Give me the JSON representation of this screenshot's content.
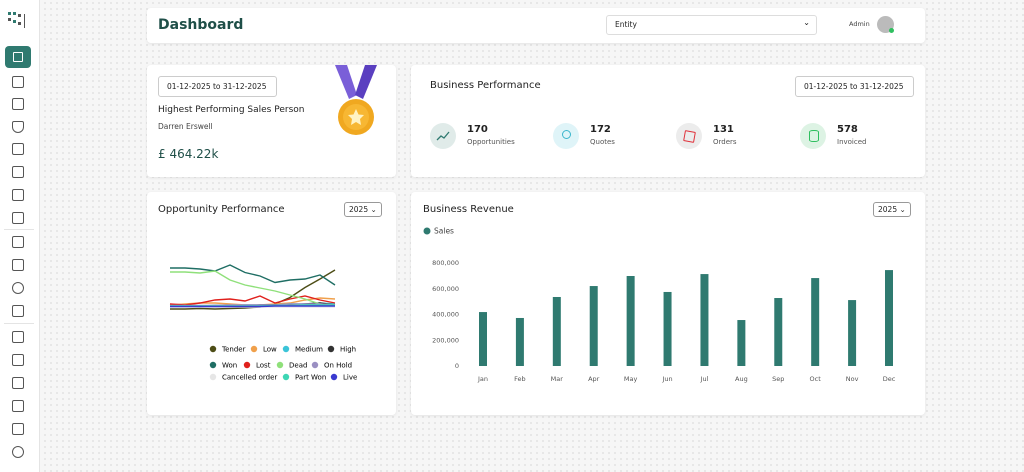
{
  "header": {
    "title": "Dashboard",
    "entity_select": "Entity",
    "user": "Admin"
  },
  "sales_person": {
    "date_range": "01-12-2025 to 31-12-2025",
    "title": "Highest Performing Sales Person",
    "name": "Darren Erswell",
    "amount": "£ 464.22k"
  },
  "business_performance": {
    "title": "Business Performance",
    "date_range": "01-12-2025 to 31-12-2025",
    "stats": [
      {
        "value": 170,
        "label": "Opportunities"
      },
      {
        "value": 172,
        "label": "Quotes"
      },
      {
        "value": 131,
        "label": "Orders"
      },
      {
        "value": 578,
        "label": "Invoiced"
      }
    ]
  },
  "chart_data": [
    {
      "type": "line",
      "title": "Opportunity Performance",
      "year_filter": "2025",
      "categories": [
        null,
        null,
        null,
        null,
        null,
        null,
        null,
        null,
        null,
        null,
        null,
        null
      ],
      "ylim": [
        0,
        100
      ],
      "series": [
        {
          "name": "Tender",
          "color": "#4d4d16",
          "values": [
            2,
            2,
            3,
            2,
            3,
            4,
            6,
            12,
            25,
            45,
            62,
            80
          ]
        },
        {
          "name": "Low",
          "color": "#f0a04b",
          "values": [
            10,
            12,
            14,
            14,
            12,
            10,
            10,
            12,
            14,
            20,
            24,
            22
          ]
        },
        {
          "name": "Medium",
          "color": "#3bc4d8",
          "values": [
            8,
            8,
            8,
            8,
            8,
            10,
            10,
            10,
            12,
            12,
            14,
            12
          ]
        },
        {
          "name": "High",
          "color": "#333333",
          "values": [
            8,
            8,
            8,
            9,
            9,
            8,
            10,
            10,
            10,
            12,
            14,
            10
          ]
        },
        {
          "name": "Won",
          "color": "#1f6e64",
          "values": [
            84,
            84,
            82,
            78,
            90,
            75,
            68,
            55,
            60,
            62,
            70,
            50
          ]
        },
        {
          "name": "Lost",
          "color": "#e0201c",
          "values": [
            12,
            10,
            14,
            20,
            22,
            18,
            28,
            14,
            22,
            28,
            20,
            14
          ]
        },
        {
          "name": "Dead",
          "color": "#8fe07a",
          "values": [
            76,
            76,
            74,
            78,
            60,
            50,
            44,
            38,
            30,
            22,
            12,
            10
          ]
        },
        {
          "name": "On Hold",
          "color": "#9a8fc2",
          "values": [
            9,
            9,
            9,
            9,
            10,
            10,
            10,
            10,
            12,
            12,
            12,
            10
          ]
        },
        {
          "name": "Cancelled order",
          "color": "#e6e6e6",
          "values": [
            6,
            6,
            6,
            6,
            6,
            6,
            6,
            6,
            6,
            6,
            6,
            6
          ]
        },
        {
          "name": "Part Won",
          "color": "#3ed6b4",
          "values": [
            8,
            8,
            8,
            8,
            8,
            8,
            8,
            9,
            9,
            10,
            10,
            10
          ]
        },
        {
          "name": "Live",
          "color": "#3a3ad0",
          "values": [
            7,
            7,
            7,
            7,
            7,
            7,
            7,
            8,
            8,
            8,
            8,
            8
          ]
        }
      ]
    },
    {
      "type": "bar",
      "title": "Business Revenue",
      "year_filter": "2025",
      "categories": [
        "Jan",
        "Feb",
        "Mar",
        "Apr",
        "May",
        "Jun",
        "Jul",
        "Aug",
        "Sep",
        "Oct",
        "Nov",
        "Dec"
      ],
      "series": [
        {
          "name": "Sales",
          "color": "#2f7a70",
          "values": [
            419000,
            373000,
            536000,
            621000,
            699000,
            575000,
            714000,
            357000,
            528000,
            683000,
            512000,
            745000
          ]
        }
      ],
      "ylim": [
        0,
        800000
      ],
      "yticks": [
        0,
        {
          "value": 200000,
          "label": "200,000"
        },
        {
          "value": 400000,
          "label": "400,000"
        },
        {
          "value": 600000,
          "label": "600,000"
        },
        {
          "value": 800000,
          "label": "800,000"
        }
      ],
      "grid": false
    }
  ]
}
